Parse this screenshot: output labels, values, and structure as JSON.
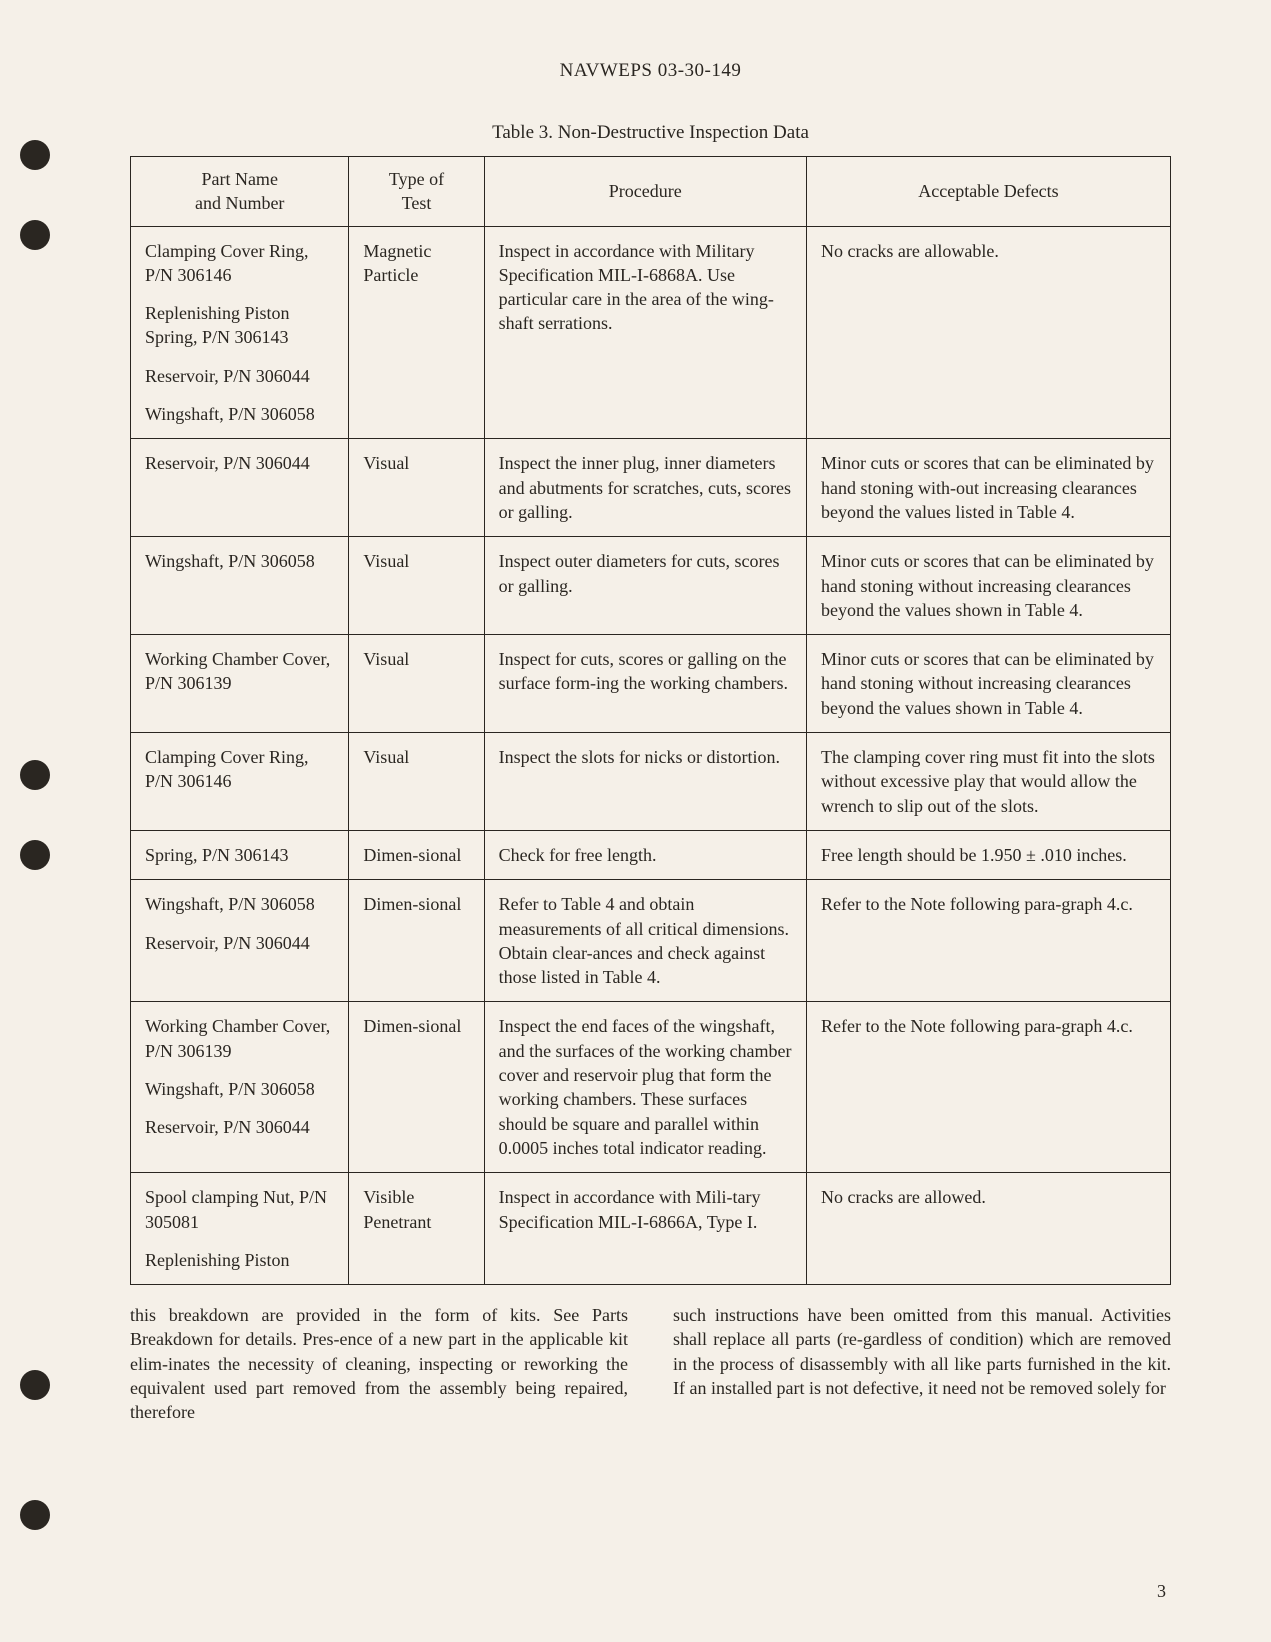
{
  "document": {
    "headerId": "NAVWEPS 03-30-149",
    "tableCaption": "Table 3.  Non-Destructive Inspection Data",
    "pageNumber": "3"
  },
  "table": {
    "headers": {
      "partName": "Part Name\nand Number",
      "testType": "Type of\nTest",
      "procedure": "Procedure",
      "defects": "Acceptable Defects"
    },
    "rows": [
      {
        "parts": [
          "Clamping Cover Ring, P/N 306146",
          "Replenishing Piston Spring, P/N 306143",
          "Reservoir, P/N 306044",
          "Wingshaft, P/N 306058"
        ],
        "testType": "Magnetic Particle",
        "procedure": "Inspect in accordance with Military Specification MIL-I-6868A.  Use particular care in the area of the wing-shaft serrations.",
        "defects": "No cracks are allowable."
      },
      {
        "parts": [
          "Reservoir, P/N 306044"
        ],
        "testType": "Visual",
        "procedure": "Inspect the inner plug, inner diameters and abutments for scratches, cuts, scores or galling.",
        "defects": "Minor cuts or scores that can be eliminated by hand stoning with-out increasing clearances beyond the values listed in Table 4."
      },
      {
        "parts": [
          "Wingshaft, P/N 306058"
        ],
        "testType": "Visual",
        "procedure": "Inspect outer diameters for cuts, scores or galling.",
        "defects": "Minor cuts or scores that can be eliminated by hand stoning without increasing clearances beyond the values shown in Table 4."
      },
      {
        "parts": [
          "Working Chamber Cover, P/N 306139"
        ],
        "testType": "Visual",
        "procedure": "Inspect for cuts, scores or galling on the surface form-ing the working chambers.",
        "defects": "Minor cuts or scores that can be eliminated by hand stoning without increasing clearances beyond the values shown in Table 4."
      },
      {
        "parts": [
          "Clamping Cover Ring, P/N 306146"
        ],
        "testType": "Visual",
        "procedure": "Inspect the slots for nicks or distortion.",
        "defects": "The clamping cover ring must fit into the slots without excessive play that would allow the wrench to slip out of the slots."
      },
      {
        "parts": [
          "Spring, P/N 306143"
        ],
        "testType": "Dimen-sional",
        "procedure": "Check for free length.",
        "defects": "Free length should be 1.950 ± .010 inches."
      },
      {
        "parts": [
          "Wingshaft, P/N 306058",
          "Reservoir, P/N 306044"
        ],
        "testType": "Dimen-sional",
        "procedure": "Refer to Table 4 and obtain measurements of all critical dimensions.  Obtain clear-ances and check against those listed in Table 4.",
        "defects": "Refer to the Note following para-graph 4.c."
      },
      {
        "parts": [
          "Working Chamber Cover, P/N 306139",
          "Wingshaft, P/N 306058",
          "Reservoir, P/N 306044"
        ],
        "testType": "Dimen-sional",
        "procedure": "Inspect the end faces of the wingshaft, and the surfaces of the working chamber cover and reservoir plug that form the working chambers.  These surfaces should be square and parallel within 0.0005 inches total indicator reading.",
        "defects": "Refer to the Note following para-graph 4.c."
      },
      {
        "parts": [
          "Spool clamping Nut, P/N 305081",
          "Replenishing Piston"
        ],
        "testType": "Visible Penetrant",
        "procedure": "Inspect in accordance with Mili-tary Specification MIL-I-6866A, Type I.",
        "defects": "No cracks are allowed."
      }
    ]
  },
  "bodyText": {
    "left": "this breakdown are provided in the form of kits. See Parts Breakdown for details. Pres-ence of a new part in the applicable kit elim-inates the necessity of cleaning, inspecting or reworking the equivalent used part removed from the assembly being repaired, therefore",
    "right": "such instructions have been omitted from this manual. Activities shall replace all parts (re-gardless of condition) which are removed in the process of disassembly with all like parts furnished in the kit. If an installed part is not defective, it need not be removed solely for"
  },
  "punchHoles": {
    "positions": [
      140,
      220,
      640,
      720,
      1280,
      1420
    ]
  }
}
